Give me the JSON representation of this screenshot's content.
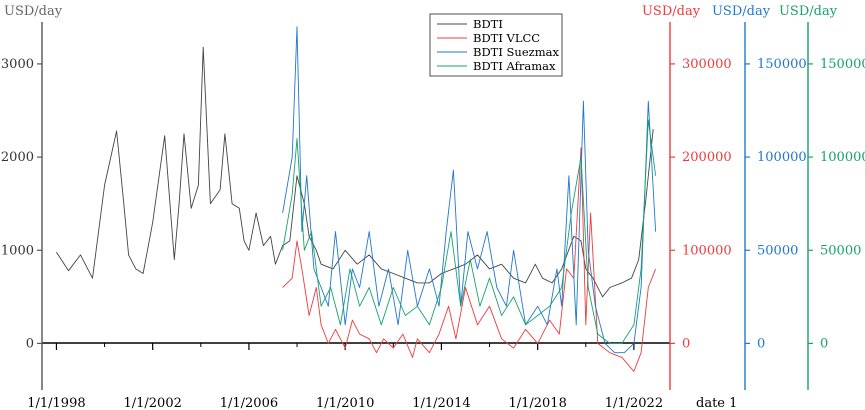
{
  "chart_data": {
    "type": "line",
    "x_axis": {
      "label": "date 1",
      "ticks": [
        "1/1/1998",
        "1/1/2002",
        "1/1/2006",
        "1/1/2010",
        "1/1/2014",
        "1/1/2018",
        "1/1/2022"
      ]
    },
    "axes": [
      {
        "id": "bdti",
        "unit": "USD/day",
        "color": "#444444",
        "ylim": [
          -500,
          3450
        ],
        "ticks": [
          "0",
          "1000",
          "2000",
          "3000"
        ]
      },
      {
        "id": "vlcc",
        "unit": "USD/day",
        "color": "#ef3b3b",
        "ylim": [
          -50000,
          345000
        ],
        "ticks": [
          "0",
          "100000",
          "200000",
          "300000"
        ]
      },
      {
        "id": "suezmax",
        "unit": "USD/day",
        "color": "#1f77d0",
        "ylim": [
          -25000,
          172500
        ],
        "ticks": [
          "0",
          "50000",
          "100000",
          "150000"
        ]
      },
      {
        "id": "aframax",
        "unit": "USD/day",
        "color": "#16a36b",
        "ylim": [
          -25000,
          172500
        ],
        "ticks": [
          "0",
          "50000",
          "100000",
          "150000"
        ]
      }
    ],
    "legend": {
      "position": "top-center",
      "entries": [
        "BDTI",
        "BDTI VLCC",
        "BDTI Suezmax",
        "BDTI Aframax"
      ]
    },
    "series": [
      {
        "name": "BDTI",
        "axis": "bdti",
        "color": "#444444",
        "x": [
          1998.0,
          1998.5,
          1999.0,
          1999.5,
          2000.0,
          2000.5,
          2000.8,
          2001.0,
          2001.3,
          2001.6,
          2002.0,
          2002.5,
          2002.9,
          2003.1,
          2003.3,
          2003.6,
          2003.9,
          2004.1,
          2004.4,
          2004.8,
          2005.0,
          2005.3,
          2005.6,
          2005.8,
          2006.0,
          2006.3,
          2006.6,
          2006.9,
          2007.1,
          2007.4,
          2007.7,
          2008.0,
          2008.3,
          2008.5,
          2008.8,
          2009.0,
          2009.5,
          2010.0,
          2010.5,
          2011.0,
          2011.5,
          2012.0,
          2012.5,
          2013.0,
          2013.5,
          2014.0,
          2014.5,
          2015.0,
          2015.5,
          2016.0,
          2016.5,
          2017.0,
          2017.5,
          2017.9,
          2018.2,
          2018.6,
          2019.0,
          2019.5,
          2019.8,
          2020.0,
          2020.3,
          2020.7,
          2021.0,
          2021.5,
          2021.9,
          2022.2,
          2022.5,
          2022.8
        ],
        "values": [
          980,
          780,
          950,
          700,
          1700,
          2280,
          1500,
          950,
          800,
          750,
          1300,
          2230,
          900,
          1500,
          2250,
          1450,
          1700,
          3180,
          1500,
          1650,
          2250,
          1500,
          1450,
          1100,
          1000,
          1400,
          1050,
          1150,
          850,
          1050,
          1100,
          1800,
          1500,
          1150,
          1000,
          850,
          800,
          1000,
          850,
          950,
          800,
          750,
          700,
          650,
          650,
          750,
          800,
          850,
          950,
          800,
          850,
          700,
          650,
          850,
          700,
          650,
          800,
          1150,
          1100,
          800,
          700,
          500,
          600,
          650,
          700,
          900,
          1550,
          2300
        ]
      },
      {
        "name": "BDTI VLCC",
        "axis": "vlcc",
        "color": "#ef3b3b",
        "x": [
          2007.4,
          2007.8,
          2008.0,
          2008.2,
          2008.5,
          2008.8,
          2009.0,
          2009.3,
          2009.6,
          2010.0,
          2010.3,
          2010.6,
          2011.0,
          2011.3,
          2011.6,
          2012.0,
          2012.4,
          2012.8,
          2013.0,
          2013.5,
          2013.9,
          2014.3,
          2014.6,
          2015.0,
          2015.5,
          2016.0,
          2016.5,
          2017.0,
          2017.5,
          2018.0,
          2018.5,
          2018.9,
          2019.2,
          2019.5,
          2019.8,
          2020.0,
          2020.2,
          2020.5,
          2021.0,
          2021.5,
          2022.0,
          2022.3,
          2022.6,
          2022.9
        ],
        "values": [
          60000,
          70000,
          110000,
          80000,
          30000,
          60000,
          20000,
          0,
          15000,
          -5000,
          25000,
          10000,
          5000,
          -10000,
          5000,
          -5000,
          10000,
          -15000,
          5000,
          -10000,
          10000,
          40000,
          5000,
          60000,
          20000,
          40000,
          5000,
          -5000,
          15000,
          0,
          25000,
          10000,
          80000,
          70000,
          210000,
          20000,
          140000,
          0,
          -10000,
          -15000,
          -30000,
          -10000,
          60000,
          80000
        ]
      },
      {
        "name": "BDTI Suezmax",
        "axis": "suezmax",
        "color": "#1f77d0",
        "x": [
          2007.4,
          2007.8,
          2008.0,
          2008.2,
          2008.4,
          2008.7,
          2009.0,
          2009.3,
          2009.6,
          2010.0,
          2010.3,
          2010.6,
          2011.0,
          2011.4,
          2011.8,
          2012.2,
          2012.6,
          2013.0,
          2013.5,
          2013.9,
          2014.2,
          2014.5,
          2014.8,
          2015.1,
          2015.5,
          2015.9,
          2016.3,
          2016.7,
          2017.0,
          2017.5,
          2018.0,
          2018.4,
          2018.8,
          2019.0,
          2019.3,
          2019.6,
          2019.9,
          2020.1,
          2020.4,
          2020.8,
          2021.2,
          2021.6,
          2022.0,
          2022.3,
          2022.6,
          2022.9
        ],
        "values": [
          70000,
          100000,
          170000,
          60000,
          90000,
          40000,
          30000,
          20000,
          60000,
          10000,
          40000,
          30000,
          60000,
          20000,
          40000,
          10000,
          50000,
          20000,
          40000,
          20000,
          60000,
          93000,
          20000,
          60000,
          40000,
          60000,
          30000,
          20000,
          50000,
          10000,
          20000,
          10000,
          40000,
          20000,
          90000,
          10000,
          130000,
          50000,
          20000,
          0,
          -5000,
          -5000,
          0,
          30000,
          130000,
          60000
        ]
      },
      {
        "name": "BDTI Aframax",
        "axis": "aframax",
        "color": "#16a36b",
        "x": [
          2007.4,
          2007.8,
          2008.0,
          2008.3,
          2008.6,
          2009.0,
          2009.4,
          2009.8,
          2010.2,
          2010.6,
          2011.0,
          2011.5,
          2012.0,
          2012.5,
          2013.0,
          2013.5,
          2014.0,
          2014.4,
          2014.8,
          2015.2,
          2015.6,
          2016.0,
          2016.5,
          2017.0,
          2017.5,
          2018.0,
          2018.5,
          2019.0,
          2019.4,
          2019.8,
          2020.1,
          2020.5,
          2021.0,
          2021.5,
          2022.0,
          2022.3,
          2022.6,
          2022.9
        ],
        "values": [
          50000,
          80000,
          110000,
          50000,
          60000,
          20000,
          30000,
          10000,
          40000,
          20000,
          30000,
          10000,
          30000,
          15000,
          20000,
          10000,
          30000,
          60000,
          20000,
          45000,
          20000,
          35000,
          15000,
          25000,
          10000,
          15000,
          20000,
          30000,
          70000,
          100000,
          30000,
          5000,
          0,
          0,
          10000,
          40000,
          120000,
          90000
        ]
      }
    ]
  }
}
